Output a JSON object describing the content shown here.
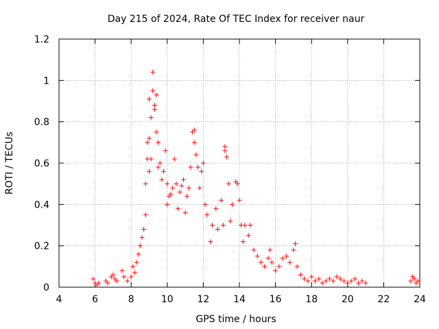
{
  "chart_data": {
    "type": "scatter",
    "title": "Day 215 of 2024, Rate Of TEC Index for receiver naur",
    "xlabel": "GPS time / hours",
    "ylabel": "ROTI / TECUs",
    "xlim": [
      4,
      24
    ],
    "ylim": [
      0,
      1.2
    ],
    "x_ticks": [
      "4",
      "6",
      "8",
      "10",
      "12",
      "14",
      "16",
      "18",
      "20",
      "22",
      "24"
    ],
    "y_ticks": [
      "0",
      "0.2",
      "0.4",
      "0.6",
      "0.8",
      "1",
      "1.2"
    ],
    "grid": true,
    "marker": "+",
    "series": [
      {
        "color": "#ff0000",
        "points": [
          [
            5.9,
            0.04
          ],
          [
            6.0,
            0.02
          ],
          [
            6.1,
            0.01
          ],
          [
            6.2,
            0.02
          ],
          [
            6.6,
            0.03
          ],
          [
            6.7,
            0.02
          ],
          [
            6.9,
            0.05
          ],
          [
            7.0,
            0.06
          ],
          [
            7.1,
            0.04
          ],
          [
            7.2,
            0.03
          ],
          [
            7.5,
            0.08
          ],
          [
            7.6,
            0.05
          ],
          [
            7.8,
            0.03
          ],
          [
            8.0,
            0.05
          ],
          [
            8.1,
            0.1
          ],
          [
            8.2,
            0.07
          ],
          [
            8.3,
            0.12
          ],
          [
            8.4,
            0.16
          ],
          [
            8.5,
            0.2
          ],
          [
            8.6,
            0.24
          ],
          [
            8.7,
            0.28
          ],
          [
            8.8,
            0.35
          ],
          [
            8.8,
            0.5
          ],
          [
            8.9,
            0.62
          ],
          [
            8.9,
            0.7
          ],
          [
            9.0,
            0.56
          ],
          [
            9.0,
            0.72
          ],
          [
            9.0,
            0.91
          ],
          [
            9.1,
            0.82
          ],
          [
            9.1,
            0.62
          ],
          [
            9.2,
            0.95
          ],
          [
            9.2,
            1.04
          ],
          [
            9.3,
            0.88
          ],
          [
            9.3,
            0.86
          ],
          [
            9.4,
            0.93
          ],
          [
            9.4,
            0.75
          ],
          [
            9.5,
            0.7
          ],
          [
            9.5,
            0.58
          ],
          [
            9.6,
            0.6
          ],
          [
            9.7,
            0.52
          ],
          [
            9.8,
            0.56
          ],
          [
            9.9,
            0.66
          ],
          [
            10.0,
            0.4
          ],
          [
            10.0,
            0.5
          ],
          [
            10.1,
            0.44
          ],
          [
            10.2,
            0.45
          ],
          [
            10.3,
            0.48
          ],
          [
            10.4,
            0.62
          ],
          [
            10.5,
            0.5
          ],
          [
            10.6,
            0.38
          ],
          [
            10.7,
            0.46
          ],
          [
            10.8,
            0.49
          ],
          [
            10.9,
            0.52
          ],
          [
            11.0,
            0.36
          ],
          [
            11.1,
            0.44
          ],
          [
            11.2,
            0.48
          ],
          [
            11.3,
            0.58
          ],
          [
            11.4,
            0.75
          ],
          [
            11.5,
            0.7
          ],
          [
            11.5,
            0.76
          ],
          [
            11.6,
            0.64
          ],
          [
            11.7,
            0.58
          ],
          [
            11.8,
            0.48
          ],
          [
            11.9,
            0.56
          ],
          [
            12.0,
            0.6
          ],
          [
            12.1,
            0.4
          ],
          [
            12.2,
            0.35
          ],
          [
            12.4,
            0.22
          ],
          [
            12.5,
            0.3
          ],
          [
            12.7,
            0.38
          ],
          [
            12.8,
            0.28
          ],
          [
            13.0,
            0.42
          ],
          [
            13.1,
            0.3
          ],
          [
            13.2,
            0.66
          ],
          [
            13.2,
            0.68
          ],
          [
            13.3,
            0.63
          ],
          [
            13.4,
            0.5
          ],
          [
            13.5,
            0.32
          ],
          [
            13.6,
            0.4
          ],
          [
            13.8,
            0.51
          ],
          [
            13.9,
            0.5
          ],
          [
            14.0,
            0.42
          ],
          [
            14.1,
            0.3
          ],
          [
            14.2,
            0.22
          ],
          [
            14.3,
            0.3
          ],
          [
            14.5,
            0.25
          ],
          [
            14.6,
            0.3
          ],
          [
            14.8,
            0.18
          ],
          [
            15.0,
            0.15
          ],
          [
            15.2,
            0.12
          ],
          [
            15.4,
            0.1
          ],
          [
            15.6,
            0.14
          ],
          [
            15.7,
            0.18
          ],
          [
            15.8,
            0.12
          ],
          [
            16.0,
            0.08
          ],
          [
            16.2,
            0.1
          ],
          [
            16.4,
            0.14
          ],
          [
            16.6,
            0.15
          ],
          [
            16.8,
            0.12
          ],
          [
            17.0,
            0.18
          ],
          [
            17.1,
            0.21
          ],
          [
            17.2,
            0.1
          ],
          [
            17.4,
            0.06
          ],
          [
            17.6,
            0.04
          ],
          [
            17.8,
            0.03
          ],
          [
            18.0,
            0.05
          ],
          [
            18.2,
            0.03
          ],
          [
            18.4,
            0.04
          ],
          [
            18.6,
            0.02
          ],
          [
            18.8,
            0.03
          ],
          [
            19.0,
            0.04
          ],
          [
            19.2,
            0.03
          ],
          [
            19.4,
            0.05
          ],
          [
            19.6,
            0.04
          ],
          [
            19.8,
            0.03
          ],
          [
            20.0,
            0.02
          ],
          [
            20.2,
            0.03
          ],
          [
            20.4,
            0.04
          ],
          [
            20.6,
            0.02
          ],
          [
            20.8,
            0.03
          ],
          [
            21.0,
            0.02
          ],
          [
            23.5,
            0.03
          ],
          [
            23.6,
            0.05
          ],
          [
            23.7,
            0.04
          ],
          [
            23.8,
            0.02
          ],
          [
            23.9,
            0.03
          ]
        ]
      }
    ]
  }
}
